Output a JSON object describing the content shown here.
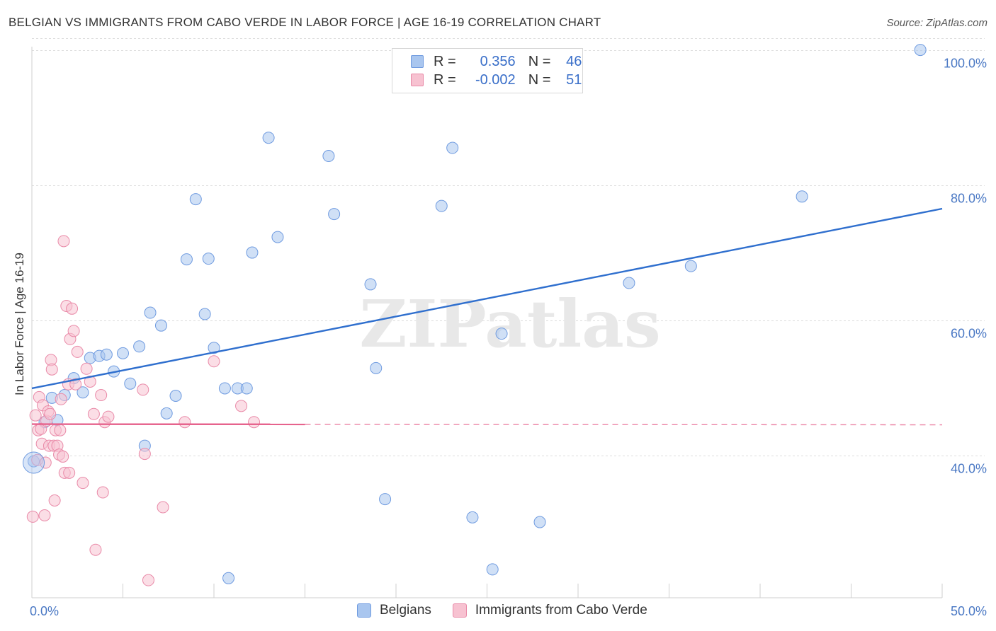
{
  "title": "BELGIAN VS IMMIGRANTS FROM CABO VERDE IN LABOR FORCE | AGE 16-19 CORRELATION CHART",
  "source": "Source: ZipAtlas.com",
  "watermark": "ZIPatlas",
  "legend_top": {
    "rows": [
      {
        "r_label": "R =",
        "r_value": "0.356",
        "n_label": "N =",
        "n_value": "46",
        "color": "#a9c6ef",
        "border": "#6f9be0"
      },
      {
        "r_label": "R =",
        "r_value": "-0.002",
        "n_label": "N =",
        "n_value": "51",
        "color": "#f7c2d1",
        "border": "#e98aa8"
      }
    ]
  },
  "legend_bottom": {
    "items": [
      {
        "label": "Belgians",
        "color": "#a9c6ef",
        "border": "#6f9be0"
      },
      {
        "label": "Immigrants from Cabo Verde",
        "color": "#f7c2d1",
        "border": "#e98aa8"
      }
    ]
  },
  "chart_data": {
    "type": "scatter",
    "xlabel": "",
    "ylabel": "In Labor Force | Age 16-19",
    "xlim": [
      0,
      50
    ],
    "ylim": [
      19,
      101
    ],
    "x_tick_labels": [
      {
        "value": 0,
        "label": "0.0%"
      },
      {
        "value": 50,
        "label": "50.0%"
      }
    ],
    "y_tick_labels": [
      {
        "value": 40,
        "label": "40.0%"
      },
      {
        "value": 60,
        "label": "60.0%"
      },
      {
        "value": 80,
        "label": "80.0%"
      },
      {
        "value": 100,
        "label": "100.0%"
      }
    ],
    "series": [
      {
        "name": "Belgians",
        "color": "#a9c6ef",
        "edge": "#6f9be0",
        "trend": {
          "x0": 0,
          "y0": 50.0,
          "x1": 50,
          "y1": 76.6,
          "color": "#2f6fce",
          "dashed_from": null
        },
        "points": [
          [
            0.1,
            39.2
          ],
          [
            0.7,
            45.0
          ],
          [
            1.1,
            48.6
          ],
          [
            1.4,
            45.3
          ],
          [
            1.8,
            49.0
          ],
          [
            2.3,
            51.5
          ],
          [
            2.8,
            49.4
          ],
          [
            3.2,
            54.5
          ],
          [
            3.7,
            54.8
          ],
          [
            4.1,
            55.0
          ],
          [
            4.5,
            52.5
          ],
          [
            5.0,
            55.2
          ],
          [
            5.4,
            50.7
          ],
          [
            5.9,
            56.2
          ],
          [
            6.2,
            41.5
          ],
          [
            6.5,
            61.2
          ],
          [
            7.1,
            59.3
          ],
          [
            7.4,
            46.3
          ],
          [
            7.9,
            48.9
          ],
          [
            8.5,
            69.1
          ],
          [
            9.0,
            78.0
          ],
          [
            9.5,
            61.0
          ],
          [
            9.7,
            69.2
          ],
          [
            10.0,
            56.0
          ],
          [
            10.6,
            50.0
          ],
          [
            10.8,
            21.9
          ],
          [
            11.3,
            50.0
          ],
          [
            11.8,
            50.0
          ],
          [
            12.1,
            70.1
          ],
          [
            13.0,
            87.1
          ],
          [
            13.5,
            72.4
          ],
          [
            16.3,
            84.4
          ],
          [
            16.6,
            75.8
          ],
          [
            18.6,
            65.4
          ],
          [
            18.9,
            53.0
          ],
          [
            19.4,
            33.6
          ],
          [
            22.5,
            77.0
          ],
          [
            23.1,
            85.6
          ],
          [
            24.2,
            30.9
          ],
          [
            25.3,
            23.2
          ],
          [
            25.8,
            58.1
          ],
          [
            27.9,
            30.2
          ],
          [
            32.8,
            65.6
          ],
          [
            36.2,
            68.1
          ],
          [
            42.3,
            78.4
          ],
          [
            48.8,
            100.1
          ]
        ]
      },
      {
        "name": "Immigrants from Cabo Verde",
        "color": "#f7c2d1",
        "edge": "#e98aa8",
        "trend": {
          "x0": 0,
          "y0": 44.7,
          "x1": 50,
          "y1": 44.6,
          "color": "#e6638d",
          "dashed_from": 15
        },
        "points": [
          [
            0.05,
            31.0
          ],
          [
            0.2,
            46.0
          ],
          [
            0.3,
            39.4
          ],
          [
            0.35,
            43.8
          ],
          [
            0.4,
            48.7
          ],
          [
            0.5,
            44.0
          ],
          [
            0.55,
            41.8
          ],
          [
            0.6,
            47.5
          ],
          [
            0.7,
            31.2
          ],
          [
            0.75,
            39.0
          ],
          [
            0.8,
            45.2
          ],
          [
            0.9,
            46.6
          ],
          [
            0.95,
            41.5
          ],
          [
            1.0,
            46.2
          ],
          [
            1.05,
            54.2
          ],
          [
            1.1,
            52.8
          ],
          [
            1.2,
            41.5
          ],
          [
            1.25,
            33.4
          ],
          [
            1.3,
            43.8
          ],
          [
            1.4,
            41.5
          ],
          [
            1.5,
            40.2
          ],
          [
            1.55,
            43.8
          ],
          [
            1.6,
            48.4
          ],
          [
            1.7,
            39.9
          ],
          [
            1.75,
            71.8
          ],
          [
            1.8,
            37.5
          ],
          [
            1.9,
            62.2
          ],
          [
            2.0,
            50.6
          ],
          [
            2.05,
            37.5
          ],
          [
            2.1,
            57.3
          ],
          [
            2.2,
            61.8
          ],
          [
            2.3,
            58.5
          ],
          [
            2.4,
            50.6
          ],
          [
            2.5,
            55.4
          ],
          [
            2.8,
            36.0
          ],
          [
            3.0,
            52.9
          ],
          [
            3.2,
            51.0
          ],
          [
            3.4,
            46.2
          ],
          [
            3.5,
            26.1
          ],
          [
            3.8,
            49.0
          ],
          [
            3.9,
            34.6
          ],
          [
            4.0,
            45.0
          ],
          [
            4.2,
            45.8
          ],
          [
            6.1,
            49.8
          ],
          [
            6.2,
            40.3
          ],
          [
            6.4,
            21.6
          ],
          [
            7.2,
            32.4
          ],
          [
            8.4,
            45.0
          ],
          [
            10.0,
            54.0
          ],
          [
            11.5,
            47.4
          ],
          [
            12.2,
            45.0
          ]
        ]
      }
    ]
  }
}
